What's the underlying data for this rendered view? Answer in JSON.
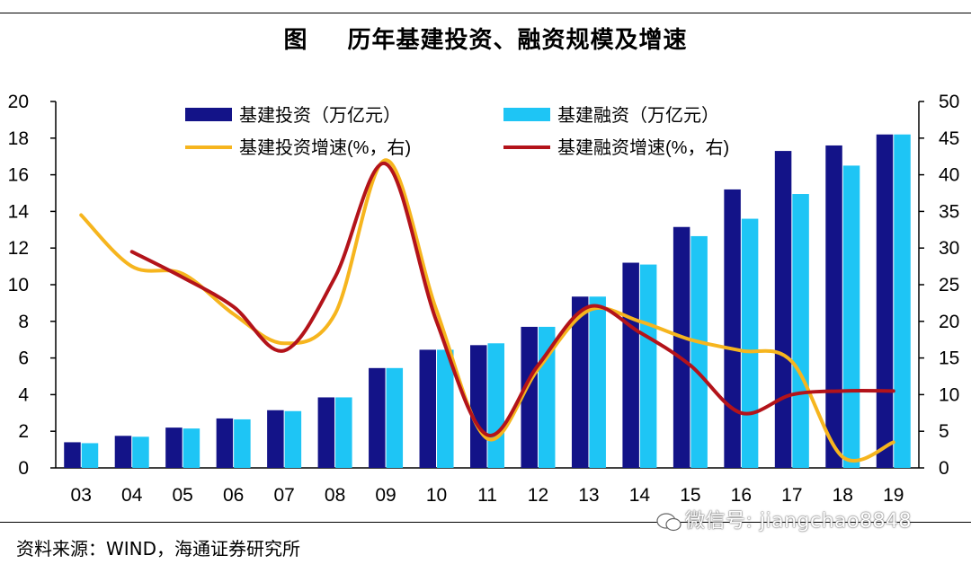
{
  "title": {
    "fig": "图",
    "text": "历年基建投资、融资规模及增速"
  },
  "source": "资料来源：WIND，海通证券研究所",
  "watermark": "微信号: jiangchao8848",
  "chart_data": {
    "type": "bar",
    "categories": [
      "03",
      "04",
      "05",
      "06",
      "07",
      "08",
      "09",
      "10",
      "11",
      "12",
      "13",
      "14",
      "15",
      "16",
      "17",
      "18",
      "19"
    ],
    "left_axis": {
      "min": 0,
      "max": 20,
      "step": 2
    },
    "right_axis": {
      "min": 0,
      "max": 50,
      "step": 5
    },
    "legend": {
      "invest": "基建投资（万亿元）",
      "finance": "基建融资（万亿元）",
      "invest_growth": "基建投资增速(%，右)",
      "finance_growth": "基建融资增速(%，右)"
    },
    "colors": {
      "invest": "#131388",
      "finance": "#1ec5f5",
      "invest_growth": "#f6b51e",
      "finance_growth": "#b3131a"
    },
    "series": [
      {
        "key": "invest",
        "type": "bar",
        "axis": "left",
        "values": [
          1.4,
          1.75,
          2.2,
          2.7,
          3.15,
          3.85,
          5.45,
          6.45,
          6.7,
          7.7,
          9.35,
          11.2,
          13.15,
          15.2,
          17.3,
          17.6,
          18.2
        ]
      },
      {
        "key": "finance",
        "type": "bar",
        "axis": "left",
        "values": [
          1.35,
          1.7,
          2.15,
          2.65,
          3.1,
          3.85,
          5.45,
          6.45,
          6.8,
          7.7,
          9.35,
          11.1,
          12.65,
          13.6,
          14.95,
          16.5,
          18.2
        ]
      },
      {
        "key": "invest_growth",
        "type": "line",
        "axis": "right",
        "values": [
          34.5,
          27.5,
          26.5,
          21,
          17,
          21,
          42,
          21.5,
          4,
          13.5,
          21.5,
          20,
          17.5,
          16,
          14.5,
          1.5,
          3.5
        ]
      },
      {
        "key": "finance_growth",
        "type": "line",
        "axis": "right",
        "values": [
          null,
          29.5,
          26,
          22,
          16,
          26,
          41.5,
          20,
          4.5,
          14,
          22,
          18.5,
          14,
          7.5,
          10,
          10.5,
          10.5
        ]
      }
    ]
  }
}
